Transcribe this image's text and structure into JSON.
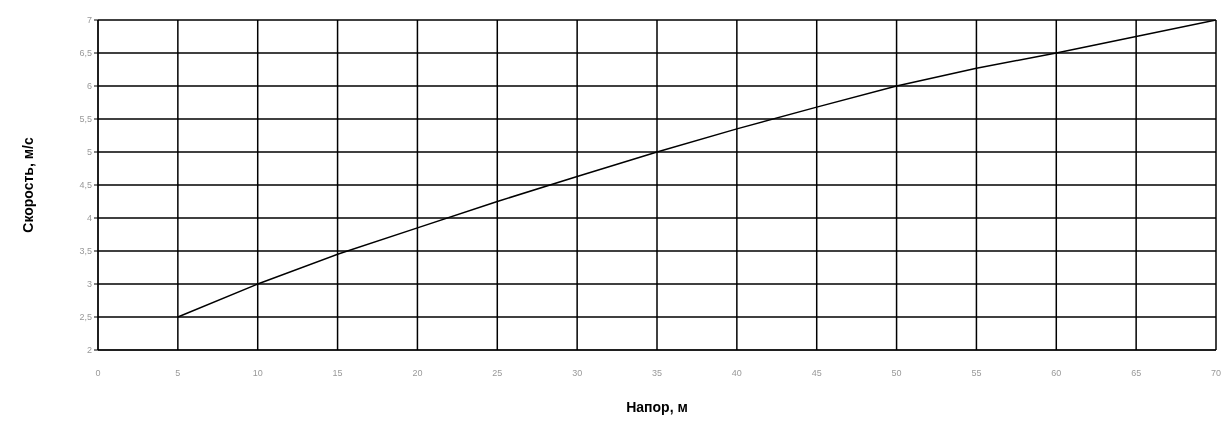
{
  "chart_data": {
    "type": "line",
    "xlabel": "Напор, м",
    "ylabel": "Скорость, м/с",
    "x": [
      5,
      10,
      15,
      20,
      25,
      30,
      35,
      40,
      45,
      50,
      55,
      60,
      65,
      70
    ],
    "series": [
      {
        "color": "#000000",
        "values": [
          2.5,
          3.0,
          3.45,
          3.85,
          4.25,
          4.63,
          5.0,
          5.35,
          5.68,
          6.0,
          6.27,
          6.5,
          6.75,
          7.0
        ]
      }
    ],
    "xlim": [
      0,
      70
    ],
    "xticks": [
      0,
      5,
      10,
      15,
      20,
      25,
      30,
      35,
      40,
      45,
      50,
      55,
      60,
      65,
      70
    ],
    "ylim": [
      2,
      7
    ],
    "yticks": [
      2,
      {
        "value": 2.5,
        "label": "2,5"
      },
      3,
      {
        "value": 3.5,
        "label": "3,5"
      },
      4,
      {
        "value": 4.5,
        "label": "4,5"
      },
      5,
      {
        "value": 5.5,
        "label": "5,5"
      },
      6,
      {
        "value": 6.5,
        "label": "6,5"
      },
      7
    ],
    "grid": true,
    "legend": false,
    "marker": "none",
    "line_style": "solid"
  }
}
